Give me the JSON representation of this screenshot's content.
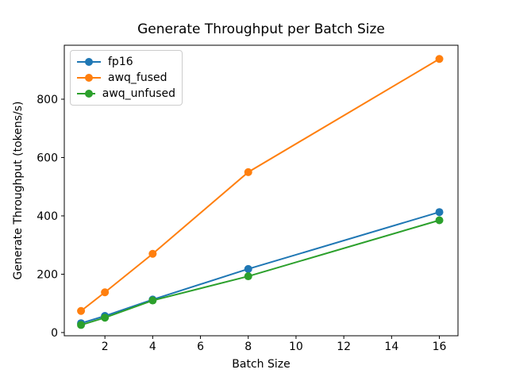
{
  "chart_data": {
    "type": "line",
    "title": "Generate Throughput per Batch Size",
    "xlabel": "Batch Size",
    "ylabel": "Generate Throughput (tokens/s)",
    "x": [
      1,
      2,
      4,
      8,
      16
    ],
    "series": [
      {
        "name": "fp16",
        "color": "#1f77b4",
        "values": [
          32,
          57,
          113,
          218,
          413
        ]
      },
      {
        "name": "awq_fused",
        "color": "#ff7f0e",
        "values": [
          74,
          138,
          270,
          550,
          938
        ]
      },
      {
        "name": "awq_unfused",
        "color": "#2ca02c",
        "values": [
          26,
          51,
          110,
          193,
          385
        ]
      }
    ],
    "xticks": [
      2,
      4,
      6,
      8,
      10,
      12,
      14,
      16
    ],
    "yticks": [
      0,
      200,
      400,
      600,
      800
    ],
    "xlim": [
      0.3,
      16.78
    ],
    "ylim": [
      -11,
      985
    ],
    "legend_position": "upper left",
    "grid": false,
    "marker": "o",
    "axis_color": "#000000",
    "background_color": "#ffffff"
  }
}
